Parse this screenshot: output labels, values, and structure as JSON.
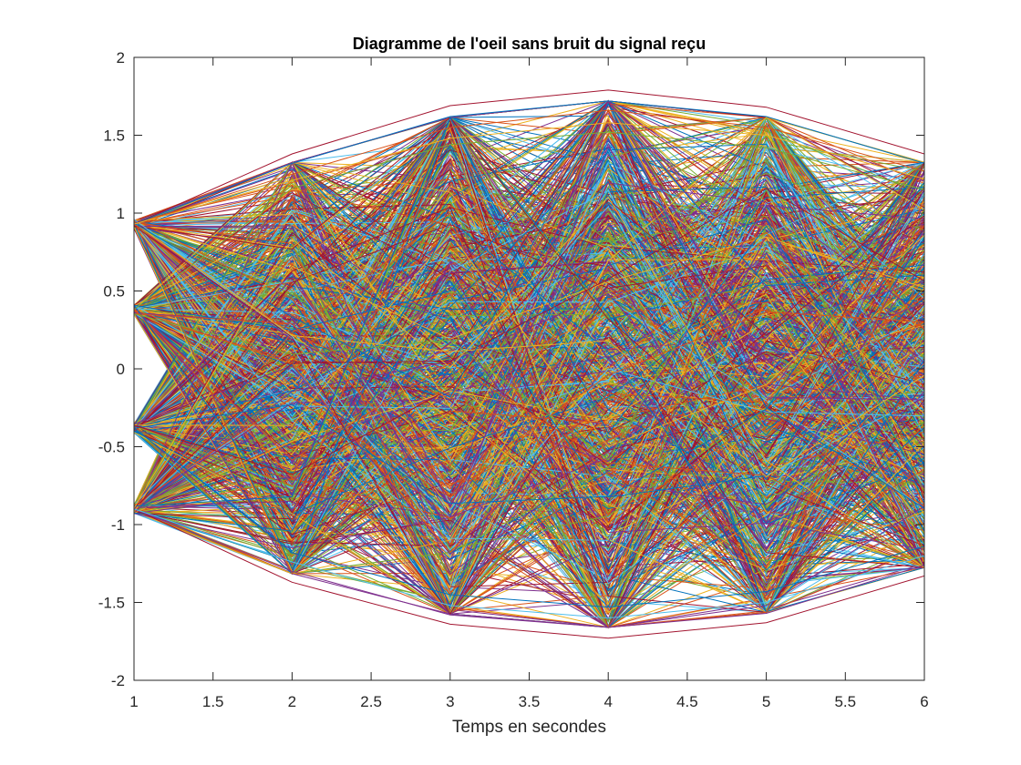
{
  "chart_data": {
    "type": "line",
    "title": "Diagramme de l'oeil sans bruit du signal reçu",
    "xlabel": "Temps en secondes",
    "ylabel": "",
    "xlim": [
      1,
      6
    ],
    "ylim": [
      -2,
      2
    ],
    "xticks": [
      1,
      1.5,
      2,
      2.5,
      3,
      3.5,
      4,
      4.5,
      5,
      5.5,
      6
    ],
    "yticks": [
      -2,
      -1.5,
      -1,
      -0.5,
      0,
      0.5,
      1,
      1.5,
      2
    ],
    "x": [
      1,
      2,
      3,
      4,
      5,
      6
    ],
    "grid": false,
    "legend": "none",
    "start_levels": [
      -0.9,
      -0.38,
      0.38,
      0.93
    ],
    "envelope": {
      "upper": [
        0.97,
        1.38,
        1.68,
        1.79,
        1.68,
        1.38
      ],
      "lower": [
        -0.97,
        -1.37,
        -1.64,
        -1.73,
        -1.63,
        -1.33
      ]
    },
    "series": [
      {
        "values": [
          0.93,
          1.38,
          1.69,
          1.79,
          1.68,
          1.38
        ],
        "color": "#A2142F"
      },
      {
        "values": [
          0.93,
          1.32,
          1.62,
          1.72,
          1.62,
          1.32
        ],
        "color": "#0072BD"
      },
      {
        "values": [
          0.93,
          1.25,
          1.55,
          1.66,
          1.55,
          1.27
        ],
        "color": "#D95319"
      },
      {
        "values": [
          0.93,
          1.21,
          1.48,
          1.58,
          1.5,
          1.22
        ],
        "color": "#EDB120"
      },
      {
        "values": [
          0.38,
          1.16,
          1.44,
          1.52,
          1.42,
          1.15
        ],
        "color": "#77AC30"
      },
      {
        "values": [
          -0.9,
          -1.37,
          -1.64,
          -1.73,
          -1.63,
          -1.33
        ],
        "color": "#A2142F"
      },
      {
        "values": [
          -0.9,
          -1.3,
          -1.58,
          -1.66,
          -1.57,
          -1.26
        ],
        "color": "#7E2F8E"
      },
      {
        "values": [
          -0.9,
          -1.24,
          -1.52,
          -1.6,
          -1.5,
          -1.2
        ],
        "color": "#4DBEEE"
      },
      {
        "values": [
          -0.38,
          -1.18,
          -1.45,
          -1.53,
          -1.43,
          -1.14
        ],
        "color": "#0072BD"
      }
    ],
    "series_colors": [
      "#0072BD",
      "#D95319",
      "#EDB120",
      "#7E2F8E",
      "#77AC30",
      "#4DBEEE",
      "#A2142F"
    ],
    "generated_trace_count": 1400
  }
}
